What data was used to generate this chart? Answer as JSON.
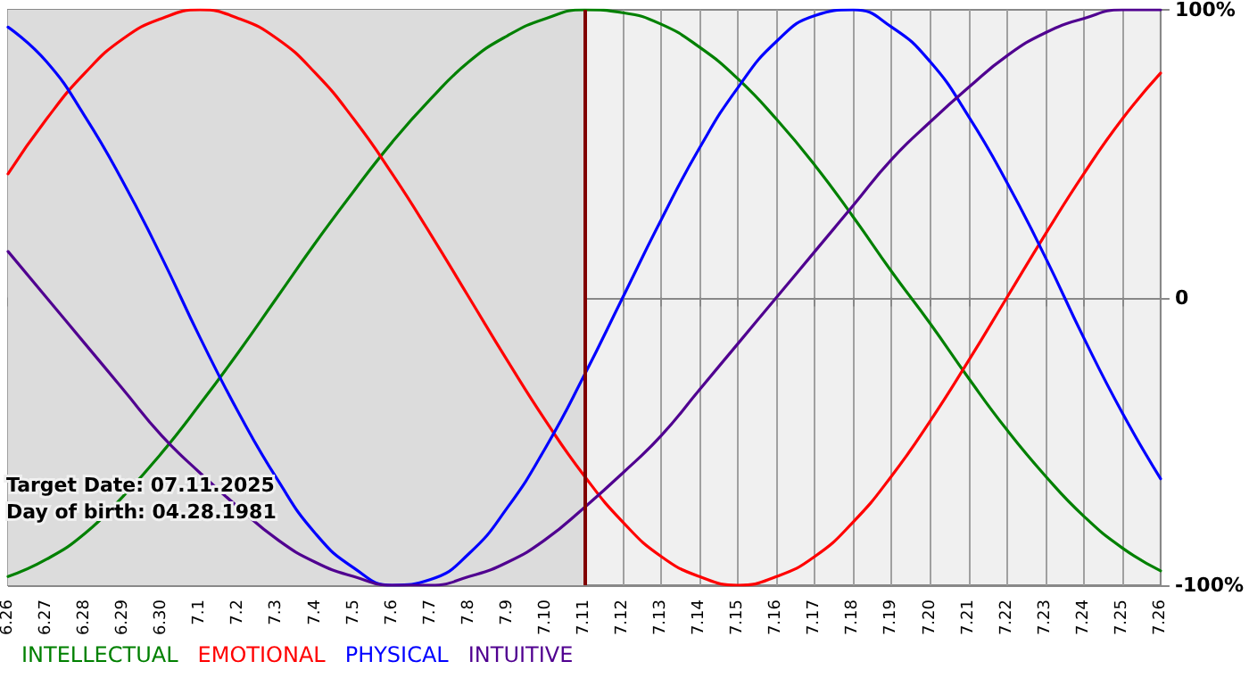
{
  "chart_data": {
    "type": "line",
    "categories": [
      "6.26",
      "6.27",
      "6.28",
      "6.29",
      "6.30",
      "7.1",
      "7.2",
      "7.3",
      "7.4",
      "7.5",
      "7.6",
      "7.7",
      "7.8",
      "7.9",
      "7.10",
      "7.11",
      "7.12",
      "7.13",
      "7.14",
      "7.15",
      "7.16",
      "7.17",
      "7.18",
      "7.19",
      "7.20",
      "7.21",
      "7.22",
      "7.23",
      "7.24",
      "7.25",
      "7.26"
    ],
    "series": [
      {
        "name": "INTELLECTUAL",
        "color": "#008000",
        "values": [
          -97,
          -91,
          -82,
          -69,
          -54,
          -37,
          -19,
          0,
          19,
          37,
          54,
          69,
          82,
          91,
          97,
          100,
          99,
          95,
          87,
          76,
          62,
          46,
          28,
          9,
          -9,
          -28,
          -46,
          -62,
          -76,
          -87,
          -95
        ]
      },
      {
        "name": "EMOTIONAL",
        "color": "#ff0000",
        "values": [
          43,
          62,
          78,
          90,
          97,
          100,
          97,
          90,
          78,
          62,
          43,
          22,
          0,
          -22,
          -43,
          -62,
          -78,
          -90,
          -97,
          -100,
          -97,
          -90,
          -78,
          -62,
          -43,
          -22,
          0,
          22,
          43,
          62,
          78
        ]
      },
      {
        "name": "PHYSICAL",
        "color": "#0000ff",
        "values": [
          94,
          82,
          63,
          40,
          14,
          -14,
          -40,
          -63,
          -82,
          -94,
          -100,
          -98,
          -89,
          -73,
          -52,
          -27,
          0,
          27,
          52,
          73,
          89,
          98,
          100,
          94,
          82,
          63,
          40,
          14,
          -14,
          -40,
          -63
        ]
      },
      {
        "name": "INTUITIVE",
        "color": "#500090",
        "values": [
          16,
          0,
          -16,
          -32,
          -48,
          -61,
          -73,
          -84,
          -92,
          -97,
          -100,
          -100,
          -97,
          -92,
          -84,
          -73,
          -61,
          -48,
          -32,
          -16,
          0,
          16,
          32,
          48,
          61,
          73,
          84,
          92,
          97,
          100,
          100
        ]
      }
    ],
    "ylim": [
      -100,
      100
    ],
    "yticks": [
      {
        "value": -100,
        "label": "-100%"
      },
      0,
      {
        "value": 100,
        "label": "100%"
      }
    ],
    "grid": true,
    "legend": "bottom left",
    "marker": "none",
    "line_style": "solid",
    "ref_lines": [
      {
        "axis": "x",
        "value": "7.11",
        "color": "#800000"
      }
    ],
    "bands": [
      {
        "axis": "x",
        "from": "6.26",
        "to": "7.11",
        "color": "#dcdcdc"
      }
    ],
    "annotations": [
      "Target Date: 07.11.2025",
      "Day of birth: 04.28.1981"
    ]
  }
}
